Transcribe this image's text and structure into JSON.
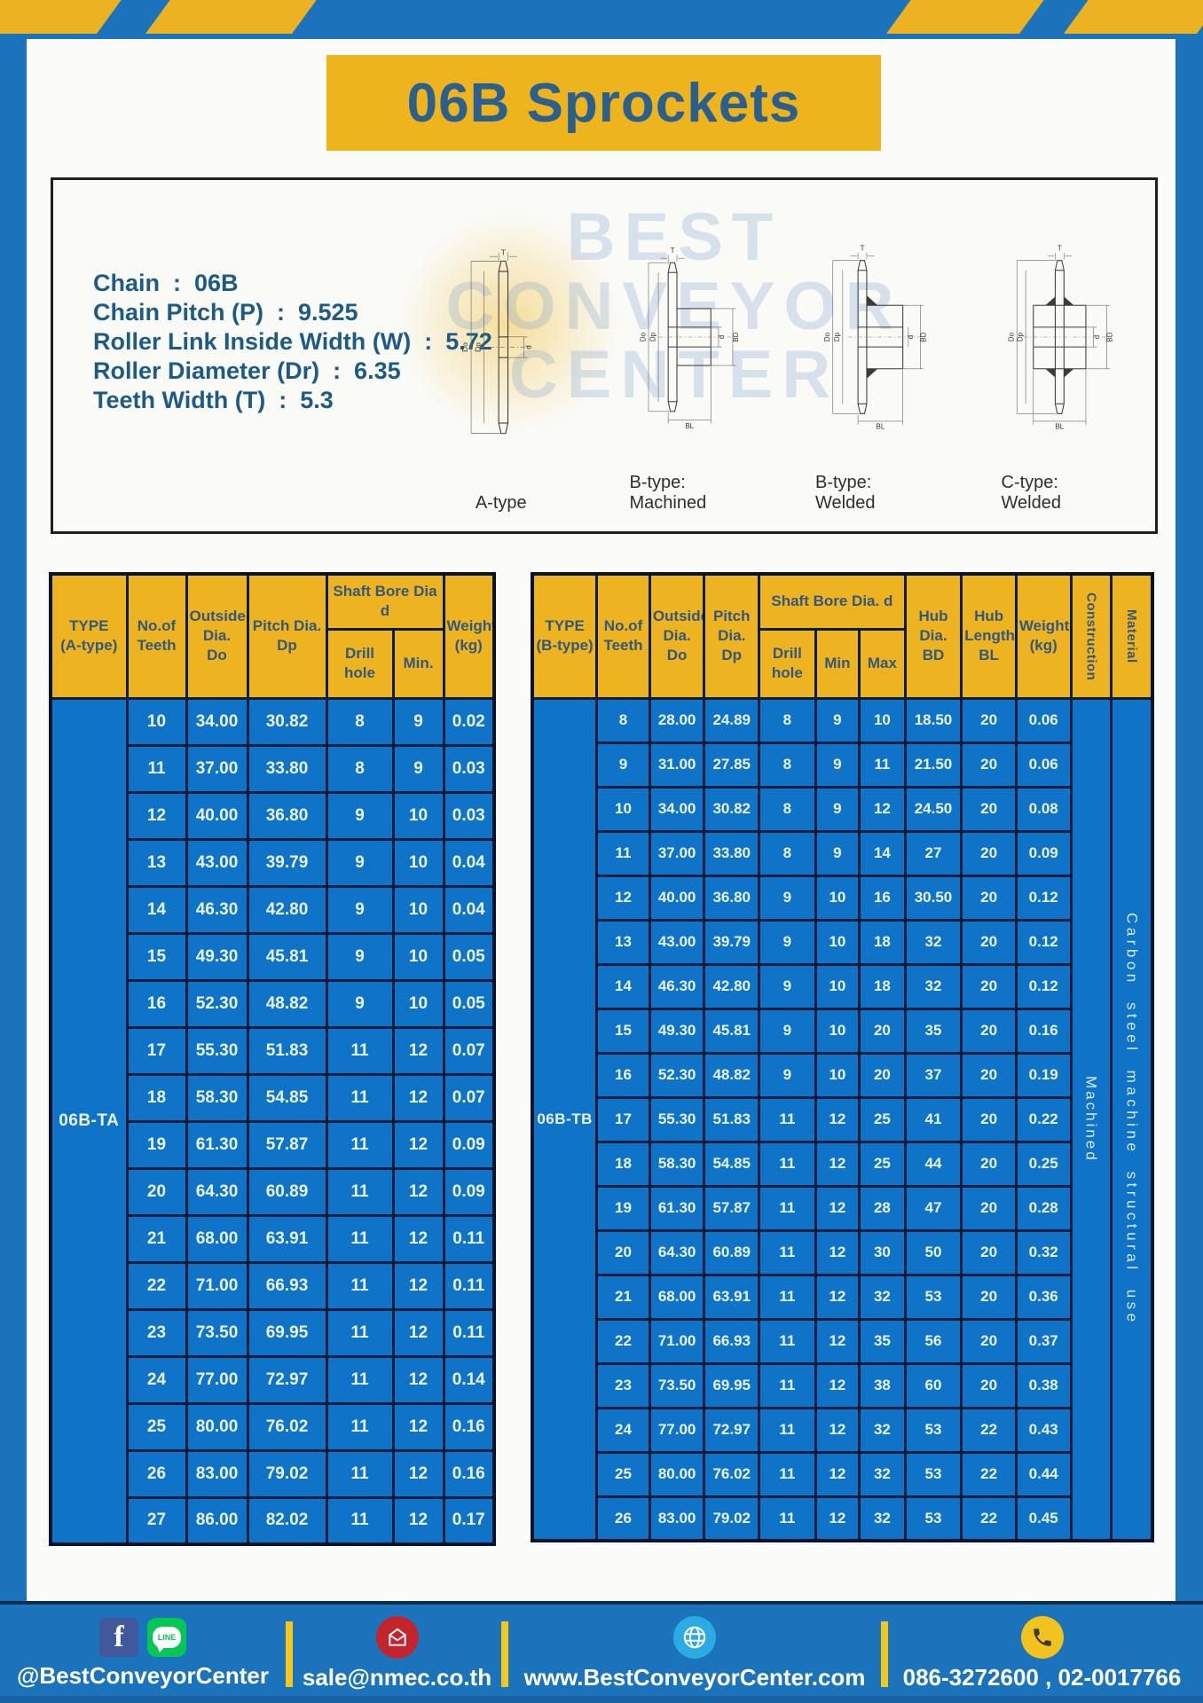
{
  "header": {
    "title": "06B Sprockets"
  },
  "spec_panel": {
    "lines": [
      {
        "label": "Chain",
        "value": "06B"
      },
      {
        "label": "Chain Pitch (P)",
        "value": "9.525"
      },
      {
        "label": "Roller Link Inside Width (W)",
        "value": "5.72"
      },
      {
        "label": "Roller Diameter (Dr)",
        "value": "6.35"
      },
      {
        "label": "Teeth Width (T)",
        "value": "5.3"
      }
    ]
  },
  "drawings": {
    "captions": [
      "A-type",
      "B-type: Machined",
      "B-type: Welded",
      "C-type: Welded"
    ],
    "dims": {
      "T": "T",
      "Do": "Do",
      "Dp": "Dp",
      "d": "d",
      "BD": "BD",
      "BL": "BL"
    },
    "watermark_lines": [
      "BEST",
      "CONVEYOR",
      "CENTER"
    ]
  },
  "table_a": {
    "type_label": "06B-TA",
    "headers": {
      "type": "TYPE\n(A-type)",
      "teeth": "No.of\nTeeth",
      "outside": "Outside\nDia.\nDo",
      "pitch": "Pitch Dia.\nDp",
      "bore_group": "Shaft Bore Dia d",
      "drill": "Drill hole",
      "min": "Min.",
      "weight": "Weight\n(kg)"
    },
    "rows": [
      [
        "10",
        "34.00",
        "30.82",
        "8",
        "9",
        "0.02"
      ],
      [
        "11",
        "37.00",
        "33.80",
        "8",
        "9",
        "0.03"
      ],
      [
        "12",
        "40.00",
        "36.80",
        "9",
        "10",
        "0.03"
      ],
      [
        "13",
        "43.00",
        "39.79",
        "9",
        "10",
        "0.04"
      ],
      [
        "14",
        "46.30",
        "42.80",
        "9",
        "10",
        "0.04"
      ],
      [
        "15",
        "49.30",
        "45.81",
        "9",
        "10",
        "0.05"
      ],
      [
        "16",
        "52.30",
        "48.82",
        "9",
        "10",
        "0.05"
      ],
      [
        "17",
        "55.30",
        "51.83",
        "11",
        "12",
        "0.07"
      ],
      [
        "18",
        "58.30",
        "54.85",
        "11",
        "12",
        "0.07"
      ],
      [
        "19",
        "61.30",
        "57.87",
        "11",
        "12",
        "0.09"
      ],
      [
        "20",
        "64.30",
        "60.89",
        "11",
        "12",
        "0.09"
      ],
      [
        "21",
        "68.00",
        "63.91",
        "11",
        "12",
        "0.11"
      ],
      [
        "22",
        "71.00",
        "66.93",
        "11",
        "12",
        "0.11"
      ],
      [
        "23",
        "73.50",
        "69.95",
        "11",
        "12",
        "0.11"
      ],
      [
        "24",
        "77.00",
        "72.97",
        "11",
        "12",
        "0.14"
      ],
      [
        "25",
        "80.00",
        "76.02",
        "11",
        "12",
        "0.16"
      ],
      [
        "26",
        "83.00",
        "79.02",
        "11",
        "12",
        "0.16"
      ],
      [
        "27",
        "86.00",
        "82.02",
        "11",
        "12",
        "0.17"
      ]
    ]
  },
  "table_b": {
    "type_label": "06B-TB",
    "headers": {
      "type": "TYPE\n(B-type)",
      "teeth": "No.of\nTeeth",
      "outside": "Outside\nDia.\nDo",
      "pitch": "Pitch\nDia.\nDp",
      "bore_group": "Shaft Bore Dia.  d",
      "drill": "Drill hole",
      "min": "Min",
      "max": "Max",
      "hub_dia": "Hub\nDia.\nBD",
      "hub_len": "Hub\nLength\nBL",
      "weight": "Weight\n(kg)",
      "construction": "Construction",
      "material": "Material"
    },
    "construction_value": "Machined",
    "material_value": "Carbon steel machine structural use",
    "rows": [
      [
        "8",
        "28.00",
        "24.89",
        "8",
        "9",
        "10",
        "18.50",
        "20",
        "0.06"
      ],
      [
        "9",
        "31.00",
        "27.85",
        "8",
        "9",
        "11",
        "21.50",
        "20",
        "0.06"
      ],
      [
        "10",
        "34.00",
        "30.82",
        "8",
        "9",
        "12",
        "24.50",
        "20",
        "0.08"
      ],
      [
        "11",
        "37.00",
        "33.80",
        "8",
        "9",
        "14",
        "27",
        "20",
        "0.09"
      ],
      [
        "12",
        "40.00",
        "36.80",
        "9",
        "10",
        "16",
        "30.50",
        "20",
        "0.12"
      ],
      [
        "13",
        "43.00",
        "39.79",
        "9",
        "10",
        "18",
        "32",
        "20",
        "0.12"
      ],
      [
        "14",
        "46.30",
        "42.80",
        "9",
        "10",
        "18",
        "32",
        "20",
        "0.12"
      ],
      [
        "15",
        "49.30",
        "45.81",
        "9",
        "10",
        "20",
        "35",
        "20",
        "0.16"
      ],
      [
        "16",
        "52.30",
        "48.82",
        "9",
        "10",
        "20",
        "37",
        "20",
        "0.19"
      ],
      [
        "17",
        "55.30",
        "51.83",
        "11",
        "12",
        "25",
        "41",
        "20",
        "0.22"
      ],
      [
        "18",
        "58.30",
        "54.85",
        "11",
        "12",
        "25",
        "44",
        "20",
        "0.25"
      ],
      [
        "19",
        "61.30",
        "57.87",
        "11",
        "12",
        "28",
        "47",
        "20",
        "0.28"
      ],
      [
        "20",
        "64.30",
        "60.89",
        "11",
        "12",
        "30",
        "50",
        "20",
        "0.32"
      ],
      [
        "21",
        "68.00",
        "63.91",
        "11",
        "12",
        "32",
        "53",
        "20",
        "0.36"
      ],
      [
        "22",
        "71.00",
        "66.93",
        "11",
        "12",
        "35",
        "56",
        "20",
        "0.37"
      ],
      [
        "23",
        "73.50",
        "69.95",
        "11",
        "12",
        "38",
        "60",
        "20",
        "0.38"
      ],
      [
        "24",
        "77.00",
        "72.97",
        "11",
        "12",
        "32",
        "53",
        "22",
        "0.43"
      ],
      [
        "25",
        "80.00",
        "76.02",
        "11",
        "12",
        "32",
        "53",
        "22",
        "0.44"
      ],
      [
        "26",
        "83.00",
        "79.02",
        "11",
        "12",
        "32",
        "53",
        "22",
        "0.45"
      ]
    ]
  },
  "footer": {
    "social_label": "@BestConveyorCenter",
    "line_icon_text": "LINE",
    "facebook_letter": "f",
    "email": "sale@nmec.co.th",
    "website": "www.BestConveyorCenter.com",
    "phone": "086-3272600 , 02-0017766"
  },
  "colors": {
    "frame_blue": "#1b74bb",
    "table_blue": "#0f74c8",
    "cell_border": "#0a1e3c",
    "header_yellow": "#eeb321",
    "title_yellow": "#edb41e",
    "title_text": "#2a5f8e",
    "header_text": "#33587c",
    "spec_text": "#1d5b86",
    "divider_yellow": "#f5c71a",
    "facebook_blue": "#41599c",
    "line_green": "#06c755",
    "email_red": "#c4242b",
    "globe_blue": "#2aabe4",
    "phone_yellow": "#f2c31c"
  }
}
